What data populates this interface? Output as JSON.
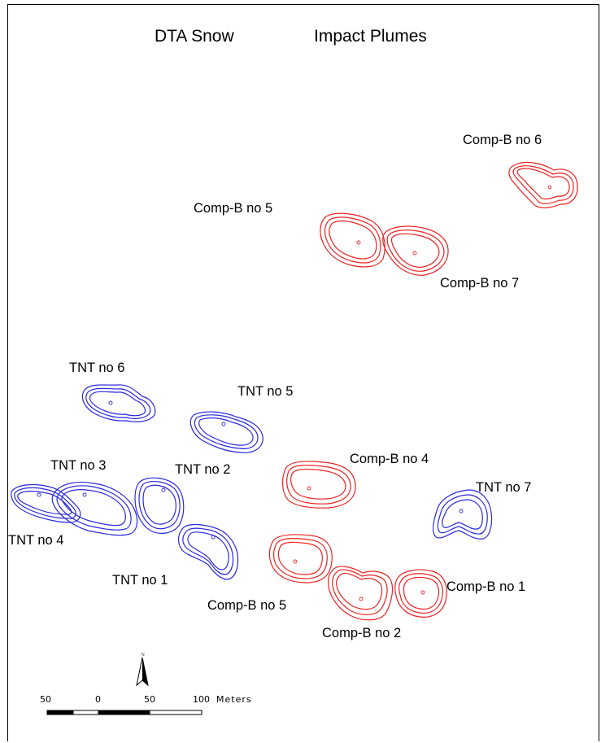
{
  "title": {
    "left": "DTA Snow",
    "right": "Impact Plumes"
  },
  "colors": {
    "comp_b": "#ee2222",
    "tnt": "#2a2ae0",
    "frame": "#000000"
  },
  "plumes": [
    {
      "id": "comp-b-6",
      "label": "Comp-B no 6",
      "type": "comp_b"
    },
    {
      "id": "comp-b-5-top",
      "label": "Comp-B no 5",
      "type": "comp_b"
    },
    {
      "id": "comp-b-7",
      "label": "Comp-B no 7",
      "type": "comp_b"
    },
    {
      "id": "tnt-6",
      "label": "TNT no 6",
      "type": "tnt"
    },
    {
      "id": "tnt-5",
      "label": "TNT no 5",
      "type": "tnt"
    },
    {
      "id": "tnt-3",
      "label": "TNT no 3",
      "type": "tnt"
    },
    {
      "id": "tnt-2",
      "label": "TNT no 2",
      "type": "tnt"
    },
    {
      "id": "comp-b-4",
      "label": "Comp-B no 4",
      "type": "comp_b"
    },
    {
      "id": "tnt-7",
      "label": "TNT no 7",
      "type": "tnt"
    },
    {
      "id": "tnt-4",
      "label": "TNT no 4",
      "type": "tnt"
    },
    {
      "id": "tnt-1",
      "label": "TNT no 1",
      "type": "tnt"
    },
    {
      "id": "comp-b-5-bottom",
      "label": "Comp-B no 5",
      "type": "comp_b"
    },
    {
      "id": "comp-b-1",
      "label": "Comp-B no 1",
      "type": "comp_b"
    },
    {
      "id": "comp-b-2",
      "label": "Comp-B no 2",
      "type": "comp_b"
    }
  ],
  "scale_bar": {
    "ticks": [
      "50",
      "0",
      "50",
      "100"
    ],
    "unit": "Meters"
  },
  "north_arrow": {
    "letter": "N",
    "icon": "north-arrow-icon"
  }
}
